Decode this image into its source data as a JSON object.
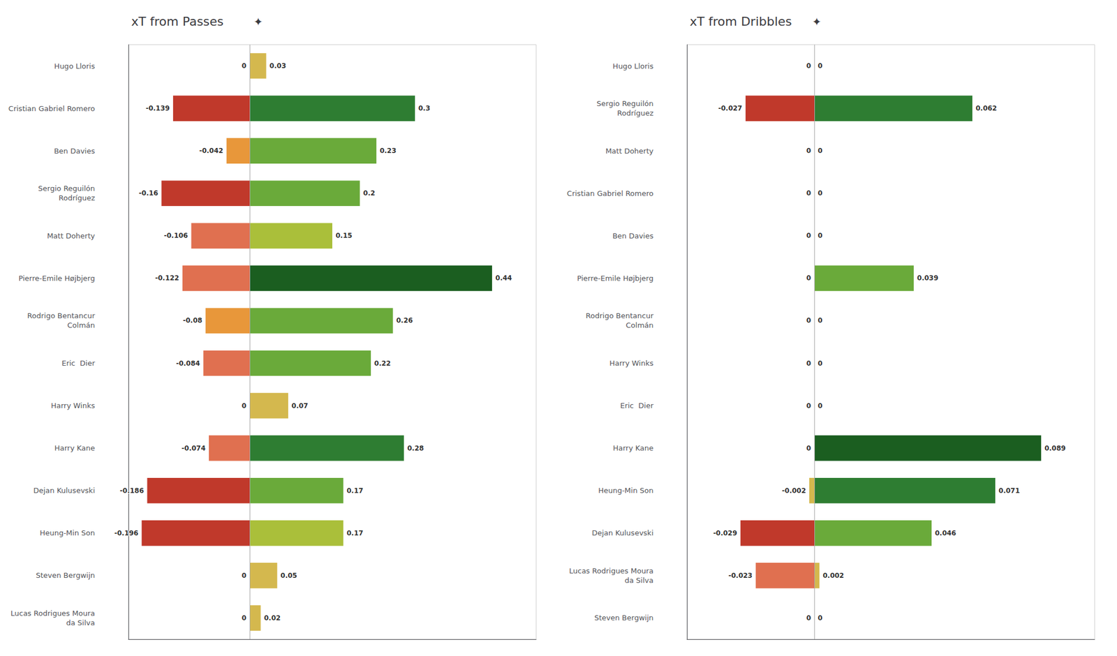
{
  "chart_data": [
    {
      "type": "bar",
      "orientation": "horizontal",
      "title": "xT from Passes",
      "annotations": [
        "✦"
      ],
      "categories": [
        "Hugo Lloris",
        "Cristian Gabriel Romero",
        "Ben Davies",
        "Sergio Reguilón\nRodríguez",
        "Matt Doherty",
        "Pierre-Emile Højbjerg",
        "Rodrigo Bentancur\nColmán",
        "Eric  Dier",
        "Harry Winks",
        "Harry Kane",
        "Dejan Kulusevski",
        "Heung-Min Son",
        "Steven Bergwijn",
        "Lucas Rodrigues Moura\nda Silva"
      ],
      "series": [
        {
          "values": [
            0,
            -0.139,
            -0.042,
            -0.16,
            -0.106,
            -0.122,
            -0.08,
            -0.084,
            0,
            -0.074,
            -0.186,
            -0.196,
            0,
            0
          ],
          "colors": [
            "#e8e8e8",
            "#c0392b",
            "#e8973a",
            "#c0392b",
            "#e07050",
            "#e07050",
            "#e8973a",
            "#e07050",
            "#e8e8e8",
            "#e07050",
            "#c0392b",
            "#c0392b",
            "#e8e8e8",
            "#e8e8e8"
          ]
        },
        {
          "values": [
            0.03,
            0.3,
            0.23,
            0.2,
            0.15,
            0.44,
            0.26,
            0.22,
            0.07,
            0.28,
            0.17,
            0.17,
            0.05,
            0.02
          ],
          "colors": [
            "#d4b84e",
            "#2e7d32",
            "#6aaa3a",
            "#6aaa3a",
            "#aabf3a",
            "#1b5e20",
            "#6aaa3a",
            "#6aaa3a",
            "#d4b84e",
            "#2e7d32",
            "#6aaa3a",
            "#aabf3a",
            "#d4b84e",
            "#d4b84e"
          ]
        }
      ],
      "xlim": [
        -0.22,
        0.52
      ],
      "data_labels": true,
      "tick_labels": "y",
      "grid": false
    },
    {
      "type": "bar",
      "orientation": "horizontal",
      "title": "xT from Dribbles",
      "annotations": [
        "✦"
      ],
      "categories": [
        "Hugo Lloris",
        "Sergio Reguilón\nRodríguez",
        "Matt Doherty",
        "Cristian Gabriel Romero",
        "Ben Davies",
        "Pierre-Emile Højbjerg",
        "Rodrigo Bentancur\nColmán",
        "Harry Winks",
        "Eric  Dier",
        "Harry Kane",
        "Heung-Min Son",
        "Dejan Kulusevski",
        "Lucas Rodrigues Moura\nda Silva",
        "Steven Bergwijn"
      ],
      "series": [
        {
          "values": [
            0,
            -0.027,
            0,
            0,
            0,
            0,
            0,
            0,
            0,
            0,
            -0.002,
            -0.029,
            -0.023,
            0
          ],
          "colors": [
            "#e8e8e8",
            "#c0392b",
            "#e8e8e8",
            "#e8e8e8",
            "#e8e8e8",
            "#e8e8e8",
            "#e8e8e8",
            "#e8e8e8",
            "#e8e8e8",
            "#e8e8e8",
            "#d4b84e",
            "#c0392b",
            "#e07050",
            "#e8e8e8"
          ]
        },
        {
          "values": [
            0,
            0.062,
            0,
            0,
            0,
            0.039,
            0,
            0,
            0,
            0.089,
            0.071,
            0.046,
            0.002,
            0
          ],
          "colors": [
            "#e8e8e8",
            "#2e7d32",
            "#e8e8e8",
            "#e8e8e8",
            "#e8e8e8",
            "#6aaa3a",
            "#e8e8e8",
            "#e8e8e8",
            "#e8e8e8",
            "#1b5e20",
            "#2e7d32",
            "#6aaa3a",
            "#d4b84e",
            "#e8e8e8"
          ]
        }
      ],
      "xlim": [
        -0.05,
        0.11
      ],
      "data_labels": true,
      "tick_labels": "y",
      "grid": false
    }
  ]
}
